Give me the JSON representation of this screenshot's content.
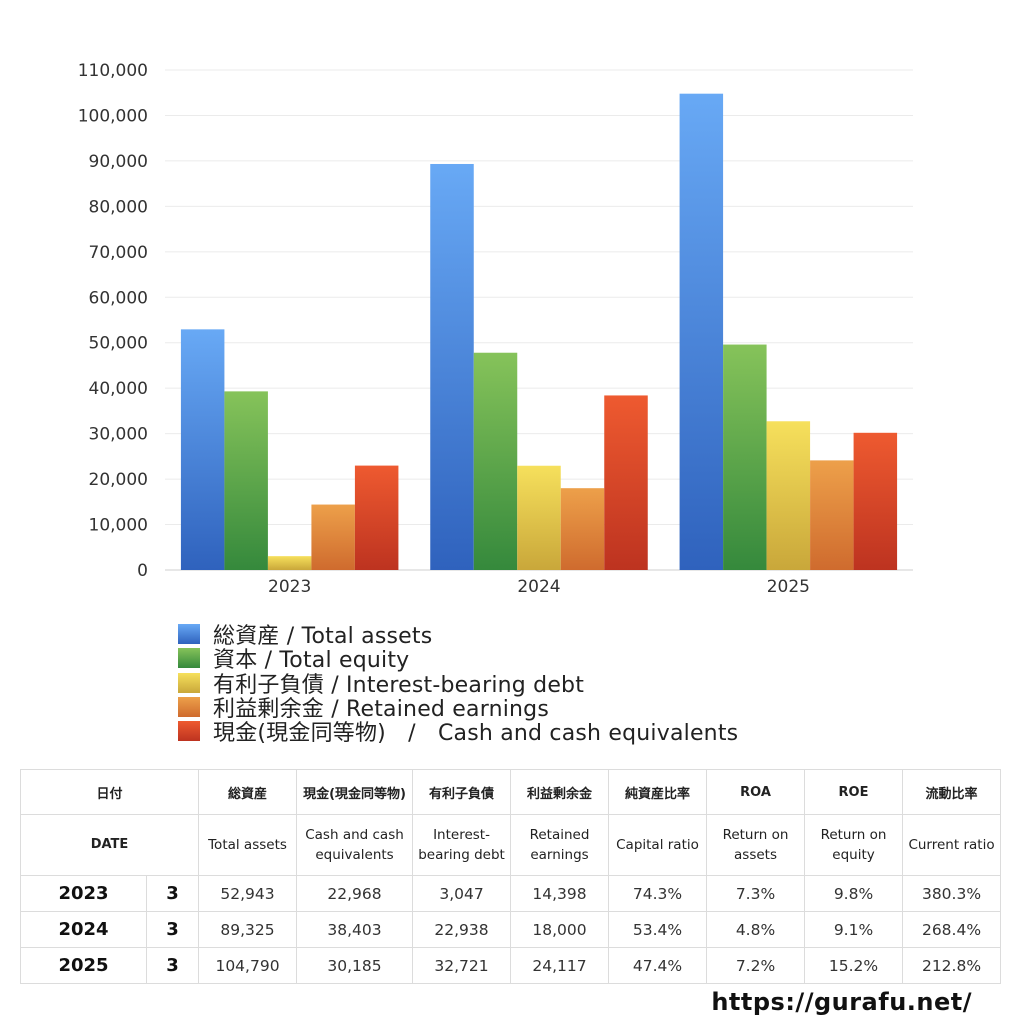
{
  "chart_data": {
    "type": "bar",
    "categories": [
      "2023",
      "2024",
      "2025"
    ],
    "ylim": [
      0,
      110000
    ],
    "yticks": [
      0,
      10000,
      20000,
      30000,
      40000,
      50000,
      60000,
      70000,
      80000,
      90000,
      100000,
      110000
    ],
    "ytick_labels": [
      "0",
      "10,000",
      "20,000",
      "30,000",
      "40,000",
      "50,000",
      "60,000",
      "70,000",
      "80,000",
      "90,000",
      "100,000",
      "110,000"
    ],
    "grid": true,
    "legend_position": "bottom",
    "series": [
      {
        "name": "総資産 / Total assets",
        "values": [
          52943,
          89325,
          104790
        ],
        "color_top": "#68a9f5",
        "color_bottom": "#2f62bd"
      },
      {
        "name": "資本 / Total equity",
        "values": [
          39300,
          47800,
          49600
        ],
        "color_top": "#86c35a",
        "color_bottom": "#35893c"
      },
      {
        "name": "有利子負債 / Interest-bearing debt",
        "values": [
          3047,
          22938,
          32721
        ],
        "color_top": "#f6e05c",
        "color_bottom": "#c9a73a"
      },
      {
        "name": "利益剰余金 / Retained earnings",
        "values": [
          14398,
          18000,
          24117
        ],
        "color_top": "#eda04a",
        "color_bottom": "#cf6b2e"
      },
      {
        "name": "現金(現金同等物)　/　Cash and cash equivalents",
        "values": [
          22968,
          38403,
          30185
        ],
        "color_top": "#ee5a30",
        "color_bottom": "#bd3320"
      }
    ]
  },
  "table": {
    "header_jp": [
      "日付",
      "総資産",
      "現金(現金同等物)",
      "有利子負債",
      "利益剰余金",
      "純資産比率",
      "ROA",
      "ROE",
      "流動比率"
    ],
    "header_en": [
      "DATE",
      "Total assets",
      "Cash and cash equivalents",
      "Interest-bearing debt",
      "Retained earnings",
      "Capital ratio",
      "Return on assets",
      "Return on equity",
      "Current ratio"
    ],
    "rows": [
      {
        "year": "2023",
        "month": "3",
        "total_assets": "52,943",
        "cash": "22,968",
        "debt": "3,047",
        "retained": "14,398",
        "capital_ratio": "74.3%",
        "roa": "7.3%",
        "roe": "9.8%",
        "current_ratio": "380.3%"
      },
      {
        "year": "2024",
        "month": "3",
        "total_assets": "89,325",
        "cash": "38,403",
        "debt": "22,938",
        "retained": "18,000",
        "capital_ratio": "53.4%",
        "roa": "4.8%",
        "roe": "9.1%",
        "current_ratio": "268.4%"
      },
      {
        "year": "2025",
        "month": "3",
        "total_assets": "104,790",
        "cash": "30,185",
        "debt": "32,721",
        "retained": "24,117",
        "capital_ratio": "47.4%",
        "roa": "7.2%",
        "roe": "15.2%",
        "current_ratio": "212.8%"
      }
    ]
  },
  "footer": {
    "url": "https://gurafu.net/"
  }
}
